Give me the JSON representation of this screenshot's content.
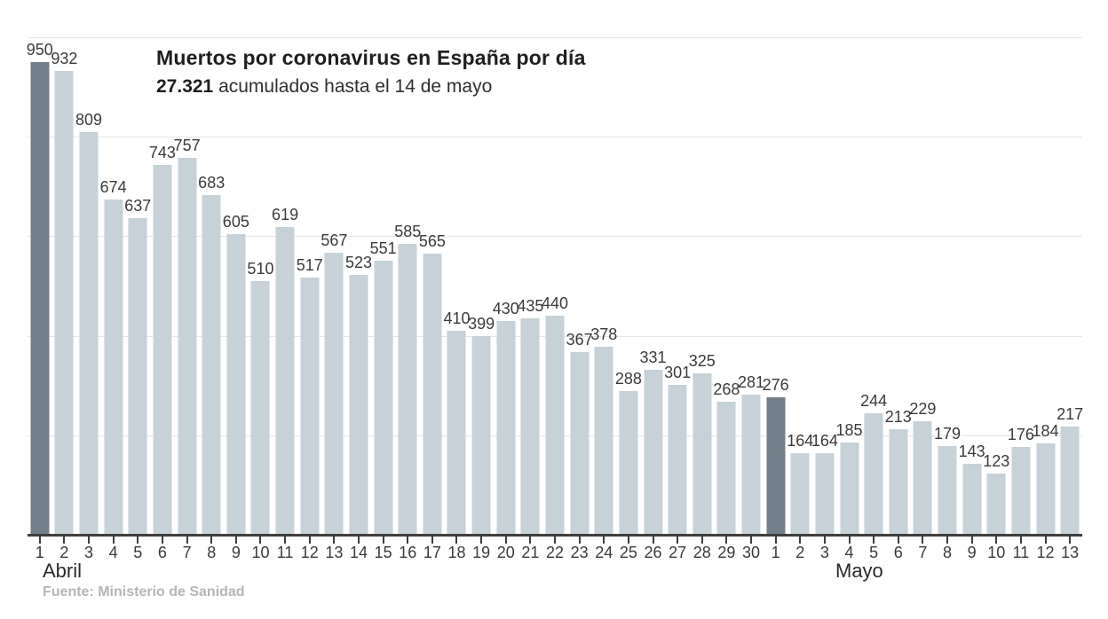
{
  "chart_data": {
    "type": "bar",
    "title": "Muertos por coronavirus en España por día",
    "subtitle": {
      "bold": "27.321",
      "text": " acumulados hasta el 14 de mayo"
    },
    "source": "Fuente: Ministerio de Sanidad",
    "ylabel": "",
    "xlabel": "",
    "ylim": [
      0,
      1000
    ],
    "grid_step": 200,
    "legend": "none",
    "groups": [
      {
        "label": "Abril",
        "days": [
          1,
          2,
          3,
          4,
          5,
          6,
          7,
          8,
          9,
          10,
          11,
          12,
          13,
          14,
          15,
          16,
          17,
          18,
          19,
          20,
          21,
          22,
          23,
          24,
          25,
          26,
          27,
          28,
          29,
          30
        ],
        "values": [
          950,
          932,
          809,
          674,
          637,
          743,
          757,
          683,
          605,
          510,
          619,
          517,
          567,
          523,
          551,
          585,
          565,
          410,
          399,
          430,
          435,
          440,
          367,
          378,
          288,
          331,
          301,
          325,
          268,
          281
        ]
      },
      {
        "label": "Mayo",
        "days": [
          1,
          2,
          3,
          4,
          5,
          6,
          7,
          8,
          9,
          10,
          11,
          12,
          13
        ],
        "values": [
          276,
          164,
          164,
          185,
          244,
          213,
          229,
          179,
          143,
          123,
          176,
          184,
          217
        ]
      }
    ],
    "highlighted": [
      {
        "group": "Abril",
        "day": 1
      },
      {
        "group": "Mayo",
        "day": 1
      }
    ],
    "colors": {
      "bar": "#c6d1d8",
      "bar_highlight": "#727e88",
      "grid": "#e6e6e6",
      "axis": "#3e3e3e",
      "value_label": "#3a3a3a",
      "title": "#1e1e1e",
      "source": "#b5b5b5"
    }
  }
}
